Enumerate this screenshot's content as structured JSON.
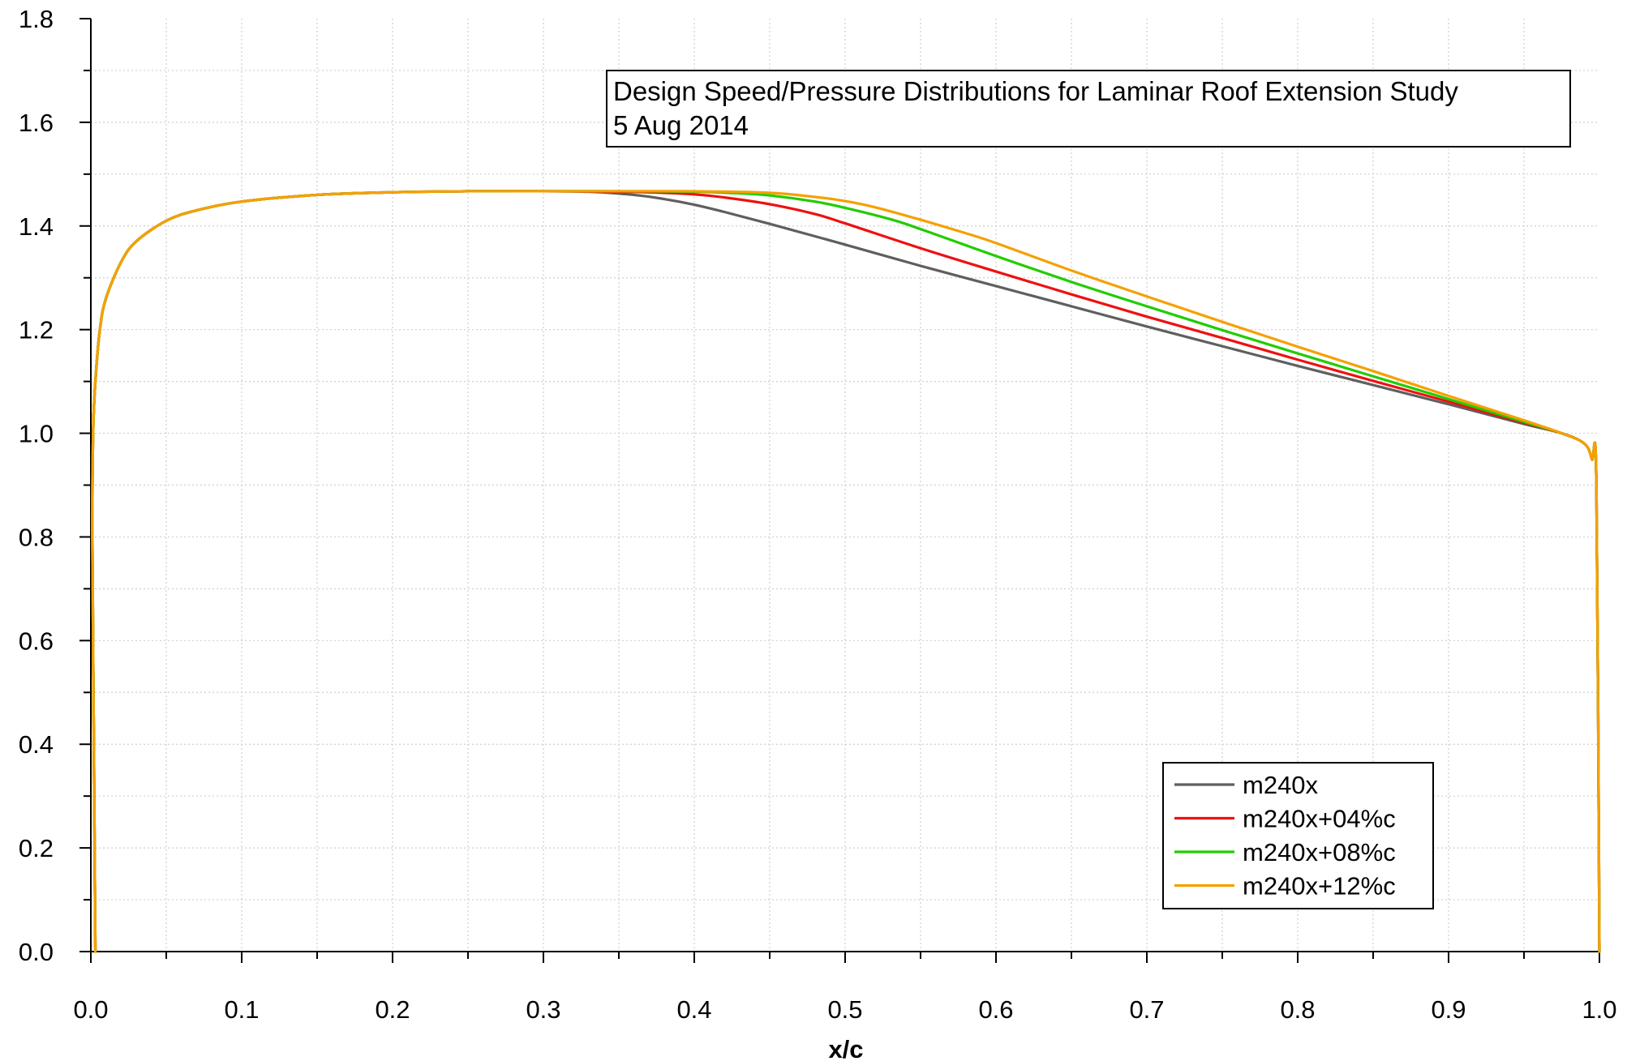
{
  "chart_data": {
    "type": "line",
    "title": "",
    "xlabel": "x/c",
    "ylabel": "",
    "xlim": [
      0.0,
      1.0
    ],
    "ylim": [
      0.0,
      1.8
    ],
    "xticks": [
      "0.0",
      "0.1",
      "0.2",
      "0.3",
      "0.4",
      "0.5",
      "0.6",
      "0.7",
      "0.8",
      "0.9",
      "1.0"
    ],
    "yticks": [
      "0.0",
      "0.2",
      "0.4",
      "0.6",
      "0.8",
      "1.0",
      "1.2",
      "1.4",
      "1.6",
      "1.8"
    ],
    "grid": true,
    "legend_position": "bottom-right",
    "annotation": {
      "line1": "Design Speed/Pressure Distributions for Laminar Roof Extension Study",
      "line2": "5 Aug 2014"
    },
    "series": [
      {
        "name": "m240x",
        "color": "#5f5f5f",
        "x": [
          0.003,
          0.002,
          0.001,
          0.0015,
          0.003,
          0.006,
          0.01,
          0.02,
          0.03,
          0.05,
          0.07,
          0.1,
          0.15,
          0.2,
          0.25,
          0.3,
          0.33,
          0.36,
          0.38,
          0.4,
          0.42,
          0.45,
          0.5,
          0.55,
          0.6,
          0.65,
          0.7,
          0.75,
          0.8,
          0.85,
          0.9,
          0.95,
          0.975,
          0.99,
          0.995,
          0.998,
          1.0
        ],
        "y": [
          0.0,
          0.4,
          0.8,
          1.0,
          1.1,
          1.2,
          1.26,
          1.33,
          1.37,
          1.41,
          1.43,
          1.447,
          1.46,
          1.465,
          1.467,
          1.467,
          1.466,
          1.46,
          1.452,
          1.441,
          1.427,
          1.404,
          1.364,
          1.323,
          1.284,
          1.245,
          1.206,
          1.168,
          1.13,
          1.093,
          1.056,
          1.018,
          1.0,
          0.98,
          0.95,
          0.9,
          0.0
        ]
      },
      {
        "name": "m240x+04%c",
        "color": "#ee1111",
        "x": [
          0.003,
          0.002,
          0.001,
          0.0015,
          0.003,
          0.006,
          0.01,
          0.02,
          0.03,
          0.05,
          0.07,
          0.1,
          0.15,
          0.2,
          0.25,
          0.3,
          0.35,
          0.38,
          0.4,
          0.42,
          0.45,
          0.48,
          0.5,
          0.55,
          0.6,
          0.65,
          0.7,
          0.75,
          0.8,
          0.85,
          0.9,
          0.95,
          0.975,
          0.99,
          0.995,
          0.998,
          1.0
        ],
        "y": [
          0.0,
          0.4,
          0.8,
          1.0,
          1.1,
          1.2,
          1.26,
          1.33,
          1.37,
          1.41,
          1.43,
          1.447,
          1.46,
          1.465,
          1.467,
          1.467,
          1.466,
          1.464,
          1.461,
          1.455,
          1.442,
          1.423,
          1.405,
          1.357,
          1.312,
          1.268,
          1.225,
          1.184,
          1.142,
          1.101,
          1.061,
          1.02,
          1.0,
          0.98,
          0.95,
          0.9,
          0.0
        ]
      },
      {
        "name": "m240x+08%c",
        "color": "#22cc00",
        "x": [
          0.003,
          0.002,
          0.001,
          0.0015,
          0.003,
          0.006,
          0.01,
          0.02,
          0.03,
          0.05,
          0.07,
          0.1,
          0.15,
          0.2,
          0.25,
          0.3,
          0.35,
          0.4,
          0.43,
          0.45,
          0.48,
          0.5,
          0.53,
          0.55,
          0.6,
          0.65,
          0.7,
          0.75,
          0.8,
          0.85,
          0.9,
          0.95,
          0.975,
          0.99,
          0.995,
          0.998,
          1.0
        ],
        "y": [
          0.0,
          0.4,
          0.8,
          1.0,
          1.1,
          1.2,
          1.26,
          1.33,
          1.37,
          1.41,
          1.43,
          1.447,
          1.46,
          1.465,
          1.467,
          1.467,
          1.467,
          1.466,
          1.463,
          1.459,
          1.447,
          1.435,
          1.413,
          1.394,
          1.342,
          1.292,
          1.245,
          1.199,
          1.154,
          1.11,
          1.066,
          1.022,
          1.0,
          0.98,
          0.95,
          0.9,
          0.0
        ]
      },
      {
        "name": "m240x+12%c",
        "color": "#f5a000",
        "x": [
          0.003,
          0.002,
          0.001,
          0.0015,
          0.003,
          0.006,
          0.01,
          0.02,
          0.03,
          0.05,
          0.07,
          0.1,
          0.15,
          0.2,
          0.25,
          0.3,
          0.35,
          0.4,
          0.45,
          0.48,
          0.5,
          0.52,
          0.55,
          0.58,
          0.6,
          0.65,
          0.7,
          0.75,
          0.8,
          0.85,
          0.9,
          0.95,
          0.975,
          0.99,
          0.995,
          0.998,
          1.0
        ],
        "y": [
          0.0,
          0.4,
          0.8,
          1.0,
          1.1,
          1.2,
          1.26,
          1.33,
          1.37,
          1.41,
          1.43,
          1.447,
          1.46,
          1.465,
          1.467,
          1.467,
          1.467,
          1.467,
          1.464,
          1.456,
          1.448,
          1.436,
          1.412,
          1.386,
          1.367,
          1.314,
          1.264,
          1.215,
          1.167,
          1.12,
          1.072,
          1.025,
          1.0,
          0.98,
          0.95,
          0.9,
          0.0
        ]
      }
    ]
  }
}
